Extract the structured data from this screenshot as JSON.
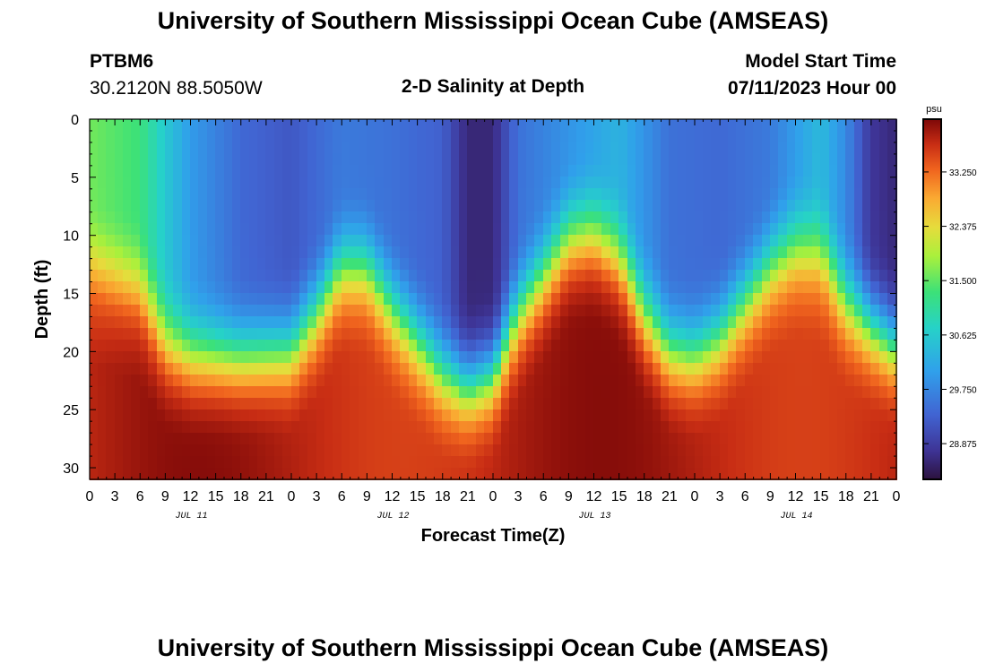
{
  "header": {
    "title": "University of Southern Mississippi Ocean Cube (AMSEAS)",
    "station": "PTBM6",
    "coords": "30.2120N  88.5050W",
    "subtitle": "2-D Salinity at Depth",
    "model_label": "Model Start Time",
    "model_time": "07/11/2023 Hour 00"
  },
  "footer": {
    "title": "University of Southern Mississippi Ocean Cube (AMSEAS)"
  },
  "chart_data": {
    "type": "heatmap",
    "title": "2-D Salinity at Depth",
    "xlabel": "Forecast Time(Z)",
    "ylabel": "Depth (ft)",
    "units": "psu",
    "x_hours_range": [
      0,
      96
    ],
    "x_tick_labels": [
      "0",
      "3",
      "6",
      "9",
      "12",
      "15",
      "18",
      "21",
      "0",
      "3",
      "6",
      "9",
      "12",
      "15",
      "18",
      "21",
      "0",
      "3",
      "6",
      "9",
      "12",
      "15",
      "18",
      "21",
      "0",
      "3",
      "6",
      "9",
      "12",
      "15",
      "18",
      "21",
      "0"
    ],
    "day_labels": [
      "JUL 11",
      "JUL 12",
      "JUL 13",
      "JUL 14"
    ],
    "ylim": [
      0,
      31
    ],
    "y_ticks": [
      0,
      5,
      10,
      15,
      20,
      25,
      30
    ],
    "colorbar": {
      "label": "psu",
      "range": [
        28.3,
        34.1
      ],
      "ticks": [
        28.875,
        29.75,
        30.625,
        31.5,
        32.375,
        33.25
      ],
      "tick_labels": [
        "28.875",
        "29.750",
        "30.625",
        "31.500",
        "32.375",
        "33.250"
      ]
    },
    "interface_depth_ft_at_hours": [
      [
        0,
        15
      ],
      [
        6,
        16.5
      ],
      [
        9,
        20.5
      ],
      [
        12,
        21.5
      ],
      [
        18,
        21.5
      ],
      [
        24,
        21
      ],
      [
        27,
        18
      ],
      [
        30,
        14
      ],
      [
        33,
        14
      ],
      [
        36,
        17.5
      ],
      [
        42,
        23
      ],
      [
        45,
        24
      ],
      [
        48,
        23
      ],
      [
        51,
        18
      ],
      [
        57,
        11.5
      ],
      [
        60,
        11
      ],
      [
        63,
        13
      ],
      [
        66,
        18
      ],
      [
        69,
        21
      ],
      [
        72,
        21.5
      ],
      [
        75,
        20
      ],
      [
        81,
        14
      ],
      [
        84,
        12.5
      ],
      [
        87,
        13
      ],
      [
        90,
        17
      ],
      [
        96,
        20.5
      ]
    ],
    "surface_salinity_psu_at_hours": [
      [
        0,
        31.6
      ],
      [
        6,
        31.3
      ],
      [
        9,
        30.6
      ],
      [
        12,
        30.0
      ],
      [
        18,
        29.4
      ],
      [
        24,
        29.2
      ],
      [
        30,
        29.6
      ],
      [
        36,
        29.5
      ],
      [
        42,
        29.3
      ],
      [
        45,
        28.6
      ],
      [
        48,
        28.6
      ],
      [
        51,
        29.5
      ],
      [
        57,
        29.9
      ],
      [
        63,
        30.3
      ],
      [
        66,
        29.9
      ],
      [
        69,
        29.5
      ],
      [
        75,
        29.4
      ],
      [
        81,
        29.6
      ],
      [
        87,
        30.4
      ],
      [
        90,
        29.8
      ],
      [
        93,
        28.8
      ],
      [
        96,
        28.6
      ]
    ],
    "deep_salinity_psu": 33.8
  }
}
